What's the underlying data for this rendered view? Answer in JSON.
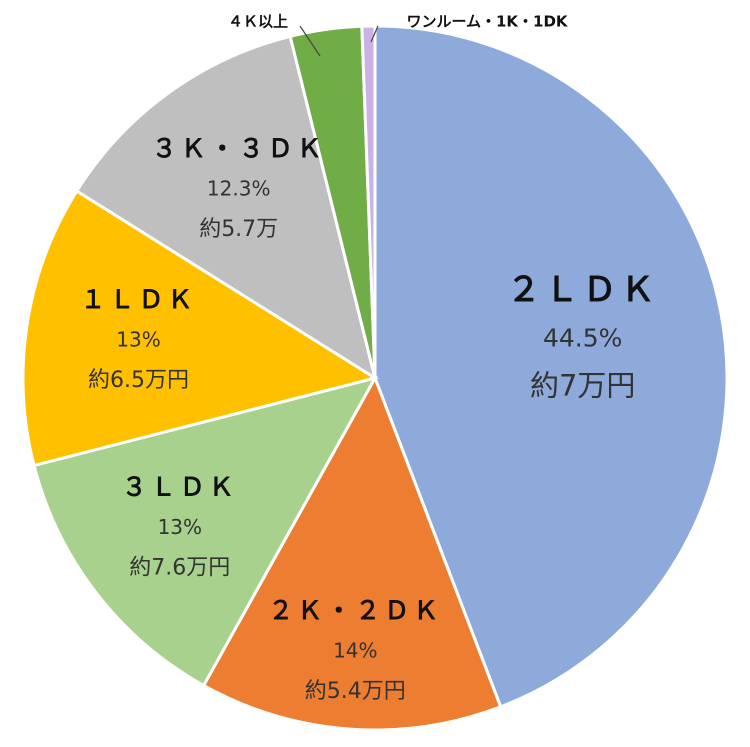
{
  "chart_data": {
    "type": "pie",
    "start_angle": "12 o'clock",
    "direction": "clockwise",
    "slices": [
      {
        "name": "２ＬＤＫ",
        "value": 44.5,
        "pct_label": "44.5%",
        "price_label": "約7万円",
        "color": "#8eaadb",
        "label_position": "inside"
      },
      {
        "name": "２Ｋ・２ＤＫ",
        "value": 14,
        "pct_label": "14%",
        "price_label": "約5.4万円",
        "color": "#ed7d31",
        "label_position": "inside"
      },
      {
        "name": "３ＬＤＫ",
        "value": 13,
        "pct_label": "13%",
        "price_label": "約7.6万円",
        "color": "#a9d18e",
        "label_position": "inside"
      },
      {
        "name": "１ＬＤＫ",
        "value": 13,
        "pct_label": "13%",
        "price_label": "約6.5万円",
        "color": "#ffc000",
        "label_position": "inside"
      },
      {
        "name": "３Ｋ・３ＤＫ",
        "value": 12.3,
        "pct_label": "12.3%",
        "price_label": "約5.7万",
        "color": "#bfbfbf",
        "label_position": "inside"
      },
      {
        "name": "４Ｋ以上",
        "value": 3.3,
        "pct_label": "",
        "price_label": "",
        "color": "#70ad47",
        "label_position": "outside"
      },
      {
        "name": "ワンルーム・1K・1DK",
        "value": 0.6,
        "pct_label": "",
        "price_label": "",
        "color": "#c9b3e6",
        "label_position": "outside"
      }
    ]
  }
}
